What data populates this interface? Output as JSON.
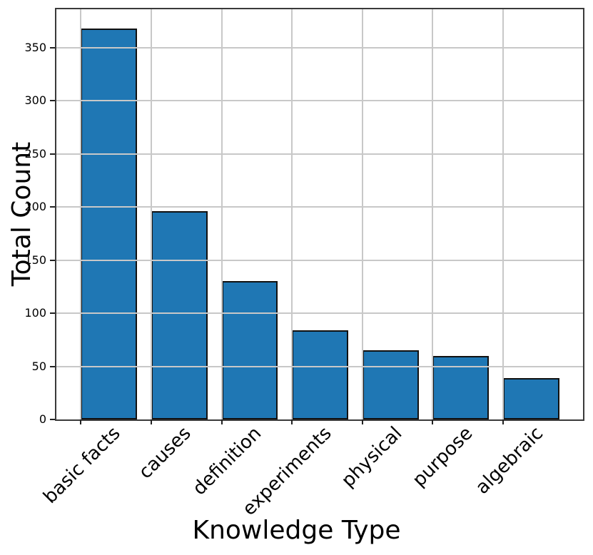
{
  "chart_data": {
    "type": "bar",
    "title": "",
    "xlabel": "Knowledge Type",
    "ylabel": "Total Count",
    "categories": [
      "basic facts",
      "causes",
      "definition",
      "experiments",
      "physical",
      "purpose",
      "algebraic"
    ],
    "values": [
      368,
      196,
      130,
      84,
      65,
      60,
      39
    ],
    "yticks": [
      0,
      50,
      100,
      150,
      200,
      250,
      300,
      350
    ],
    "ylim": [
      0,
      386
    ],
    "grid": true,
    "grid_above_bars": true,
    "legend": "none",
    "colors": {
      "bar_fill": "#1f77b4",
      "bar_edge": "#111111",
      "grid": "#c8c8c8",
      "axis": "#3a3a3a",
      "tick": "#222222",
      "text": "#000000"
    }
  }
}
